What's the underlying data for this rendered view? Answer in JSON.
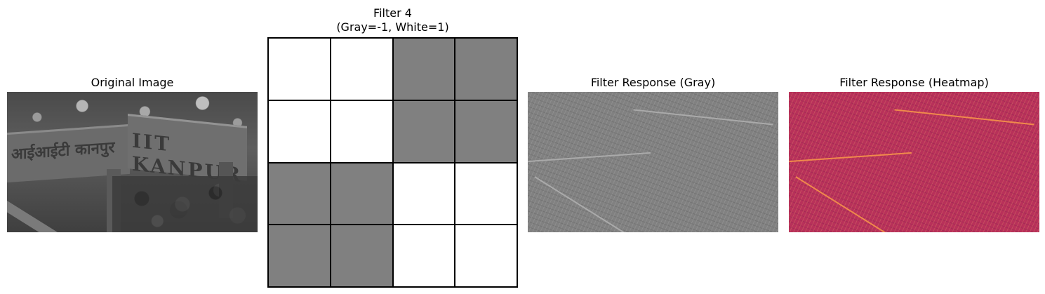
{
  "panels": {
    "original": {
      "title": "Original Image"
    },
    "filter": {
      "title": "Filter 4\n(Gray=-1, White=1)",
      "grid": [
        [
          1,
          1,
          -1,
          -1
        ],
        [
          1,
          1,
          -1,
          -1
        ],
        [
          -1,
          -1,
          1,
          1
        ],
        [
          -1,
          -1,
          1,
          1
        ]
      ],
      "colors": {
        "negative": "#808080",
        "positive": "#ffffff"
      }
    },
    "response_gray": {
      "title": "Filter Response (Gray)"
    },
    "response_heatmap": {
      "title": "Filter Response (Heatmap)"
    }
  },
  "image_text": {
    "sign_english": "IIT KANPUR",
    "sign_hindi": "आईआईटी कानपुर"
  }
}
